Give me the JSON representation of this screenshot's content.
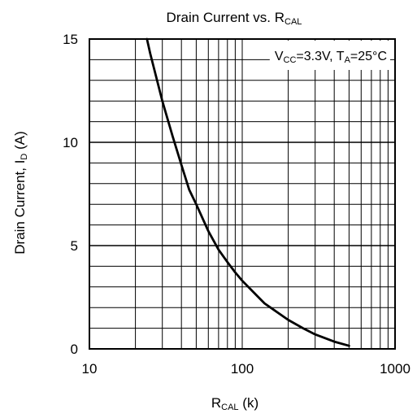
{
  "chart_data": {
    "type": "line",
    "title": {
      "main": "Drain Current vs. R",
      "sub": "CAL"
    },
    "xlabel": {
      "main": "R",
      "sub": "CAL",
      "unit": " (k)"
    },
    "ylabel": {
      "main": "Drain Current, I",
      "sub": "D",
      "unit": " (A)"
    },
    "x_scale": "log",
    "xlim": [
      10,
      1000
    ],
    "ylim": [
      0,
      15
    ],
    "x_ticks": [
      {
        "value": 10,
        "label": "10"
      },
      {
        "value": 100,
        "label": "100"
      },
      {
        "value": 1000,
        "label": "1000"
      }
    ],
    "y_ticks": [
      {
        "value": 0,
        "label": "0"
      },
      {
        "value": 5,
        "label": "5"
      },
      {
        "value": 10,
        "label": "10"
      },
      {
        "value": 15,
        "label": "15"
      }
    ],
    "grid": true,
    "annotation": {
      "parts": [
        {
          "t": "V",
          "sub": false
        },
        {
          "t": "CC",
          "sub": true
        },
        {
          "t": "=3.3V, T",
          "sub": false
        },
        {
          "t": "A",
          "sub": true
        },
        {
          "t": "=25°C",
          "sub": false
        }
      ]
    },
    "series": [
      {
        "x": [
          23.8,
          25,
          30,
          35,
          40,
          45,
          50,
          60,
          70,
          80,
          90,
          100,
          120,
          140,
          160,
          200,
          250,
          300,
          400,
          500
        ],
        "y": [
          15.0,
          14.3,
          12.0,
          10.3,
          8.9,
          7.7,
          7.0,
          5.7,
          4.8,
          4.2,
          3.7,
          3.3,
          2.7,
          2.2,
          1.9,
          1.4,
          1.0,
          0.7,
          0.35,
          0.15
        ]
      }
    ]
  }
}
